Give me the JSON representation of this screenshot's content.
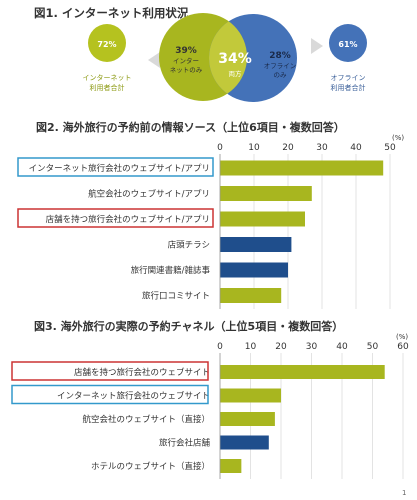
{
  "chart_data": [
    {
      "type": "venn",
      "title": "図1. インターネット利用状況",
      "left_total": {
        "value_label": "72%",
        "label_line1": "インターネット",
        "label_line2": "利用者合計"
      },
      "right_total": {
        "value_label": "61%",
        "label_line1": "オフライン",
        "label_line2": "利用者合計"
      },
      "internet_only": {
        "value_label": "39%",
        "label_line1": "インター",
        "label_line2": "ネットのみ"
      },
      "both": {
        "value_label": "34%",
        "label": "両方"
      },
      "offline_only": {
        "value_label": "28%",
        "label_line1": "オフライン",
        "label_line2": "のみ"
      },
      "colors": {
        "internet": "#a8b61f",
        "both": "#c2c93a",
        "offline": "#4472b8",
        "total_left": "#b5c21f",
        "total_right": "#4472b8",
        "arrow": "#d9d9d9"
      }
    },
    {
      "type": "bar",
      "orientation": "horizontal",
      "title": "図2. 海外旅行の予約前の情報ソース（上位6項目・複数回答）",
      "unit": "(%)",
      "xlim": [
        0,
        50
      ],
      "ticks": [
        "0",
        "10",
        "20",
        "30",
        "40",
        "50"
      ],
      "tick_values": [
        0,
        10,
        20,
        30,
        40,
        50
      ],
      "categories": [
        "インターネット旅行会社のウェブサイト/アプリ",
        "航空会社のウェブサイト/アプリ",
        "店舗を持つ旅行会社のウェブサイト/アプリ",
        "店頭チラシ",
        "旅行関連書籍/雑誌事",
        "旅行口コミサイト"
      ],
      "values": [
        48,
        27,
        25,
        21,
        20,
        18
      ],
      "colors": [
        "#a8b61f",
        "#a8b61f",
        "#a8b61f",
        "#1f4e8c",
        "#1f4e8c",
        "#a8b61f"
      ],
      "boxed": [
        {
          "index": 0,
          "color": "#3399cc"
        },
        {
          "index": 2,
          "color": "#cc3333"
        }
      ]
    },
    {
      "type": "bar",
      "orientation": "horizontal",
      "title": "図3. 海外旅行の実際の予約チャネル（上位5項目・複数回答）",
      "unit": "(%)",
      "xlim": [
        0,
        60
      ],
      "ticks": [
        "0",
        "10",
        "20",
        "30",
        "40",
        "50",
        "60"
      ],
      "tick_values": [
        0,
        10,
        20,
        30,
        40,
        50,
        60
      ],
      "categories": [
        "店舗を持つ旅行会社のウェブサイト",
        "インターネット旅行会社のウェブサイト",
        "航空会社のウェブサイト（直接）",
        "旅行会社店舗",
        "ホテルのウェブサイト（直接）"
      ],
      "values": [
        54,
        20,
        18,
        16,
        7
      ],
      "colors": [
        "#a8b61f",
        "#a8b61f",
        "#a8b61f",
        "#1f4e8c",
        "#a8b61f"
      ],
      "boxed": [
        {
          "index": 0,
          "color": "#cc3333"
        },
        {
          "index": 1,
          "color": "#3399cc"
        }
      ]
    }
  ],
  "page_number": "1"
}
